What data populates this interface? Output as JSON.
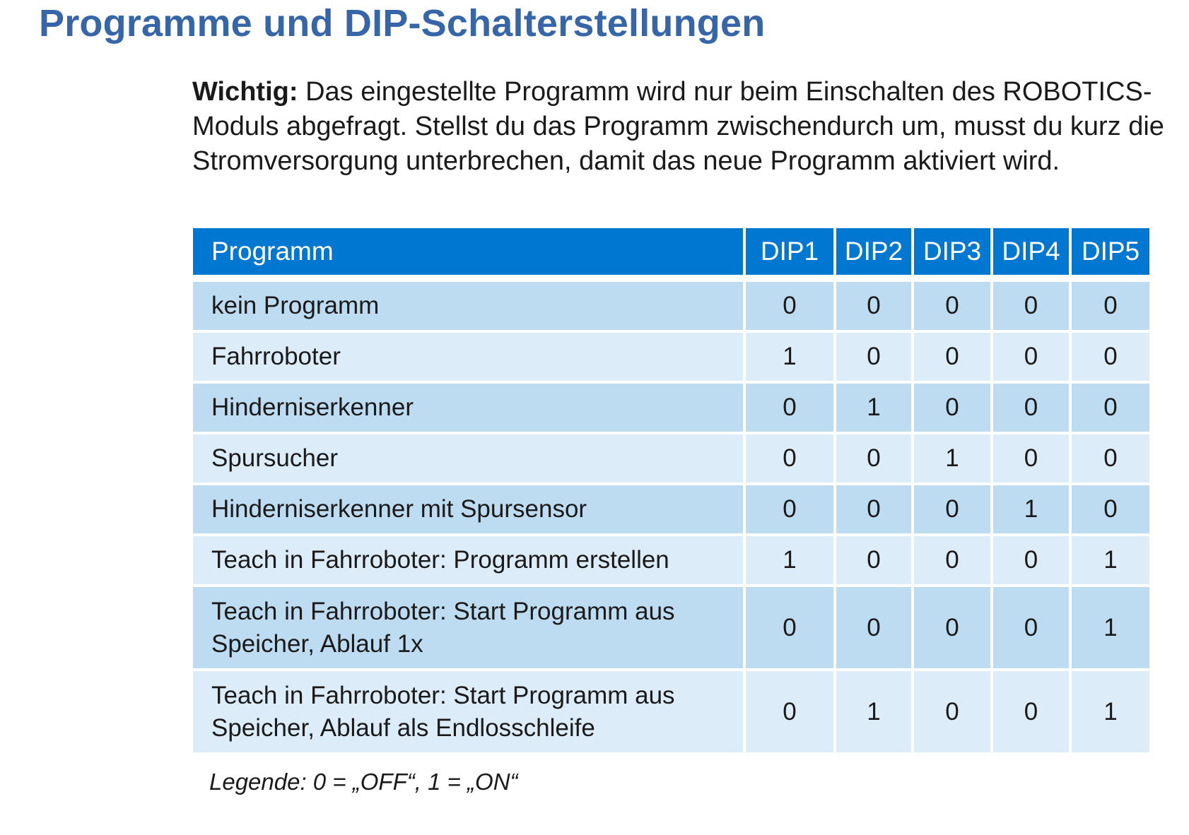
{
  "title": "Programme und DIP-Schalterstellungen",
  "note": {
    "label": "Wichtig:",
    "text": " Das eingestellte Programm wird nur beim Einschalten des ROBOTICS-Moduls abgefragt. Stellst du das Programm zwischendurch um, musst du kurz die Stromversorgung unterbrechen, damit das neue Programm aktiviert wird."
  },
  "table": {
    "headers": [
      "Programm",
      "DIP1",
      "DIP2",
      "DIP3",
      "DIP4",
      "DIP5"
    ],
    "rows": [
      {
        "program": "kein Programm",
        "dip": [
          "0",
          "0",
          "0",
          "0",
          "0"
        ]
      },
      {
        "program": "Fahrroboter",
        "dip": [
          "1",
          "0",
          "0",
          "0",
          "0"
        ]
      },
      {
        "program": "Hinderniserkenner",
        "dip": [
          "0",
          "1",
          "0",
          "0",
          "0"
        ]
      },
      {
        "program": "Spursucher",
        "dip": [
          "0",
          "0",
          "1",
          "0",
          "0"
        ]
      },
      {
        "program": "Hinderniserkenner mit Spursensor",
        "dip": [
          "0",
          "0",
          "0",
          "1",
          "0"
        ]
      },
      {
        "program": "Teach in Fahrroboter: Programm erstellen",
        "dip": [
          "1",
          "0",
          "0",
          "0",
          "1"
        ]
      },
      {
        "program": "Teach in Fahrroboter: Start Programm aus Speicher, Ablauf 1x",
        "dip": [
          "0",
          "0",
          "0",
          "0",
          "1"
        ]
      },
      {
        "program": "Teach in Fahrroboter: Start Programm aus Speicher, Ablauf als Endlosschleife",
        "dip": [
          "0",
          "1",
          "0",
          "0",
          "1"
        ]
      }
    ]
  },
  "legend": "Legende: 0 = „OFF“, 1 = „ON“",
  "colors": {
    "title": "#3766a8",
    "header_bg": "#0078d2",
    "row_dark": "#bddcf2",
    "row_light": "#dcecf9"
  }
}
